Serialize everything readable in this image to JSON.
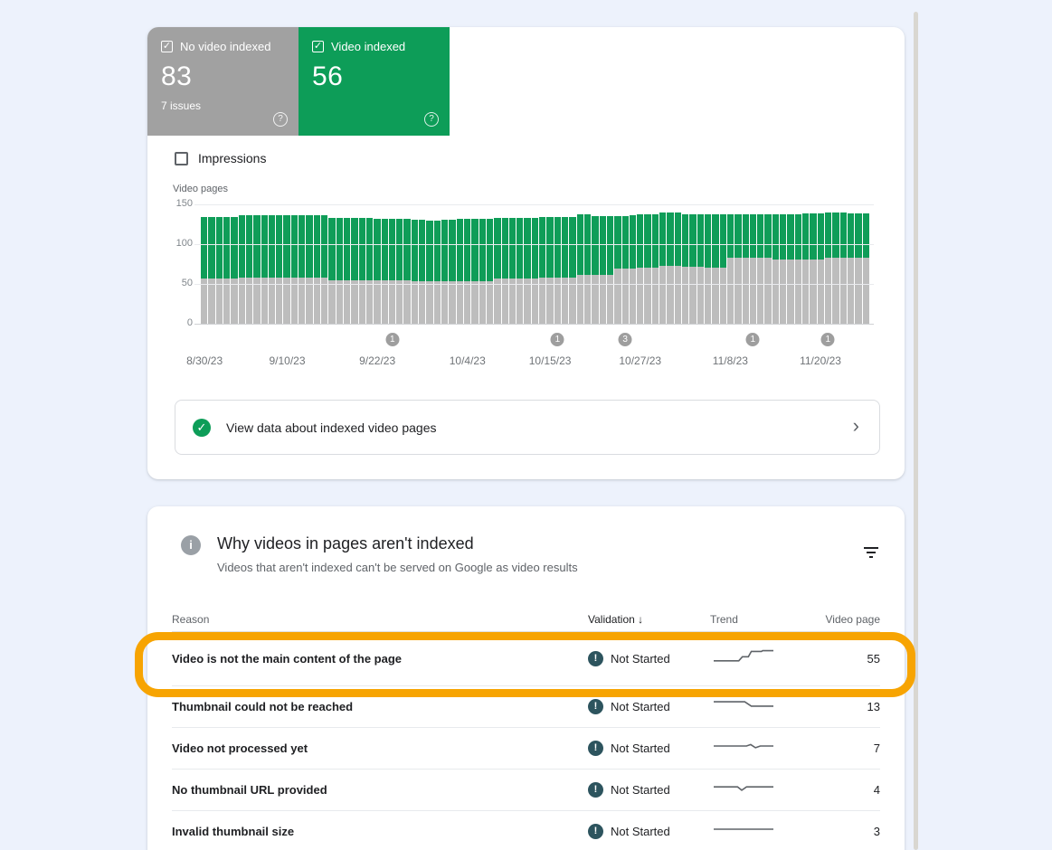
{
  "colors": {
    "page_bg": "#edf2fc",
    "card_bg": "#ffffff",
    "gray_tile": "#a1a1a1",
    "green_tile": "#0d9d58",
    "chart_green": "#0f9d58",
    "chart_gray": "#bdbdbd",
    "highlight_ring": "#f7a402",
    "not_started_icon": "#2d545e",
    "badge_gray": "#9e9e9e",
    "text_primary": "#202124",
    "text_secondary": "#5f6368"
  },
  "tiles": [
    {
      "label": "No video indexed",
      "value": "83",
      "sub": "7 issues",
      "checked": true,
      "checkbox_glyph": "✓",
      "help_glyph": "?"
    },
    {
      "label": "Video indexed",
      "value": "56",
      "sub": "",
      "checked": true,
      "checkbox_glyph": "✓",
      "help_glyph": "?"
    }
  ],
  "impressions": {
    "label": "Impressions",
    "checked": false
  },
  "chart_data": {
    "type": "bar",
    "stacked": true,
    "ylabel": "Video pages",
    "ylim": [
      0,
      150
    ],
    "yticks": [
      150,
      100,
      50,
      0
    ],
    "grid": "horizontal",
    "x_start": "8/30/23",
    "x_end": "11/26/23",
    "n_days": 89,
    "x_ticks": [
      {
        "index": 0,
        "label": "8/30/23"
      },
      {
        "index": 11,
        "label": "9/10/23"
      },
      {
        "index": 23,
        "label": "9/22/23"
      },
      {
        "index": 35,
        "label": "10/4/23"
      },
      {
        "index": 46,
        "label": "10/15/23"
      },
      {
        "index": 58,
        "label": "10/27/23"
      },
      {
        "index": 70,
        "label": "11/8/23"
      },
      {
        "index": 82,
        "label": "11/20/23"
      }
    ],
    "event_badges": [
      {
        "index": 25,
        "label": "1"
      },
      {
        "index": 47,
        "label": "1"
      },
      {
        "index": 56,
        "label": "3"
      },
      {
        "index": 73,
        "label": "1"
      },
      {
        "index": 83,
        "label": "1"
      }
    ],
    "series": [
      {
        "name": "No video indexed",
        "color": "#bdbdbd",
        "values": [
          57,
          57,
          57,
          57,
          57,
          58,
          58,
          58,
          58,
          58,
          58,
          58,
          58,
          58,
          58,
          58,
          58,
          54,
          54,
          54,
          54,
          54,
          54,
          54,
          54,
          54,
          54,
          54,
          53,
          53,
          53,
          53,
          53,
          53,
          53,
          53,
          53,
          53,
          53,
          57,
          57,
          57,
          57,
          57,
          57,
          58,
          58,
          58,
          58,
          58,
          61,
          61,
          61,
          61,
          61,
          69,
          69,
          69,
          71,
          71,
          71,
          73,
          73,
          73,
          72,
          72,
          72,
          71,
          71,
          71,
          83,
          83,
          83,
          83,
          83,
          83,
          81,
          81,
          81,
          81,
          81,
          81,
          81,
          83,
          83,
          83,
          83,
          83,
          83
        ]
      },
      {
        "name": "Video indexed",
        "color": "#0f9d58",
        "values": [
          77,
          77,
          77,
          77,
          77,
          78,
          78,
          78,
          78,
          78,
          78,
          78,
          78,
          78,
          78,
          78,
          78,
          79,
          79,
          79,
          79,
          79,
          79,
          78,
          78,
          78,
          78,
          78,
          78,
          78,
          77,
          77,
          78,
          78,
          79,
          79,
          79,
          79,
          79,
          76,
          76,
          76,
          76,
          76,
          76,
          76,
          76,
          76,
          76,
          76,
          76,
          76,
          74,
          74,
          74,
          66,
          66,
          67,
          66,
          66,
          66,
          67,
          67,
          67,
          66,
          66,
          66,
          67,
          67,
          67,
          55,
          55,
          54,
          54,
          55,
          55,
          57,
          57,
          57,
          57,
          58,
          58,
          58,
          57,
          57,
          57,
          56,
          56,
          56
        ]
      }
    ]
  },
  "banner": {
    "check_glyph": "✓",
    "text": "View data about indexed video pages",
    "chevron": "›"
  },
  "panel": {
    "info_glyph": "i",
    "title": "Why videos in pages aren't indexed",
    "subtitle": "Videos that aren't indexed can't be served on Google as video results",
    "columns": {
      "reason": "Reason",
      "validation": "Validation",
      "sort_arrow": "↓",
      "trend": "Trend",
      "pages": "Video page"
    },
    "rows": [
      {
        "reason": "Video is not the main content of the page",
        "validation": "Not Started",
        "icon_glyph": "!",
        "pages": "55",
        "highlighted": true,
        "trend": [
          [
            0,
            0.8
          ],
          [
            0.42,
            0.8
          ],
          [
            0.48,
            0.52
          ],
          [
            0.58,
            0.52
          ],
          [
            0.63,
            0.15
          ],
          [
            0.8,
            0.15
          ],
          [
            0.82,
            0.1
          ],
          [
            1,
            0.1
          ]
        ]
      },
      {
        "reason": "Thumbnail could not be reached",
        "validation": "Not Started",
        "icon_glyph": "!",
        "pages": "13",
        "highlighted": false,
        "trend": [
          [
            0,
            0.32
          ],
          [
            0.52,
            0.32
          ],
          [
            0.63,
            0.62
          ],
          [
            1,
            0.62
          ]
        ]
      },
      {
        "reason": "Video not processed yet",
        "validation": "Not Started",
        "icon_glyph": "!",
        "pages": "7",
        "highlighted": false,
        "trend": [
          [
            0,
            0.5
          ],
          [
            0.55,
            0.5
          ],
          [
            0.62,
            0.4
          ],
          [
            0.7,
            0.62
          ],
          [
            0.78,
            0.5
          ],
          [
            1,
            0.5
          ]
        ]
      },
      {
        "reason": "No thumbnail URL provided",
        "validation": "Not Started",
        "icon_glyph": "!",
        "pages": "4",
        "highlighted": false,
        "trend": [
          [
            0,
            0.45
          ],
          [
            0.4,
            0.45
          ],
          [
            0.47,
            0.68
          ],
          [
            0.55,
            0.45
          ],
          [
            1,
            0.45
          ]
        ]
      },
      {
        "reason": "Invalid thumbnail size",
        "validation": "Not Started",
        "icon_glyph": "!",
        "pages": "3",
        "highlighted": false,
        "trend": [
          [
            0,
            0.5
          ],
          [
            1,
            0.5
          ]
        ]
      }
    ]
  }
}
